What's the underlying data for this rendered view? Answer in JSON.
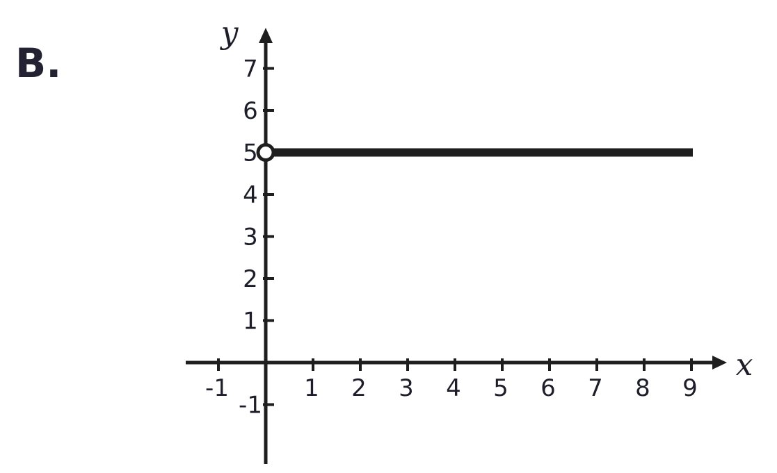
{
  "panel_label": "B.",
  "chart_data": {
    "type": "line",
    "xlabel": "x",
    "ylabel": "y",
    "xlim": [
      -1,
      9
    ],
    "ylim": [
      -1,
      7
    ],
    "x_ticks": [
      -1,
      1,
      2,
      3,
      4,
      5,
      6,
      7,
      8,
      9
    ],
    "y_ticks": [
      -1,
      1,
      2,
      3,
      4,
      5,
      6,
      7
    ],
    "x_tick_labels": [
      "-1",
      "1",
      "2",
      "3",
      "4",
      "5",
      "6",
      "7",
      "8",
      "9"
    ],
    "y_tick_labels": [
      "-1",
      "1",
      "2",
      "3",
      "4",
      "5",
      "6",
      "7"
    ],
    "grid": false,
    "series": [
      {
        "points": [
          [
            0,
            5
          ],
          [
            9,
            5
          ]
        ],
        "start_marker": "open-circle",
        "color": "#1e1e1e"
      }
    ]
  }
}
